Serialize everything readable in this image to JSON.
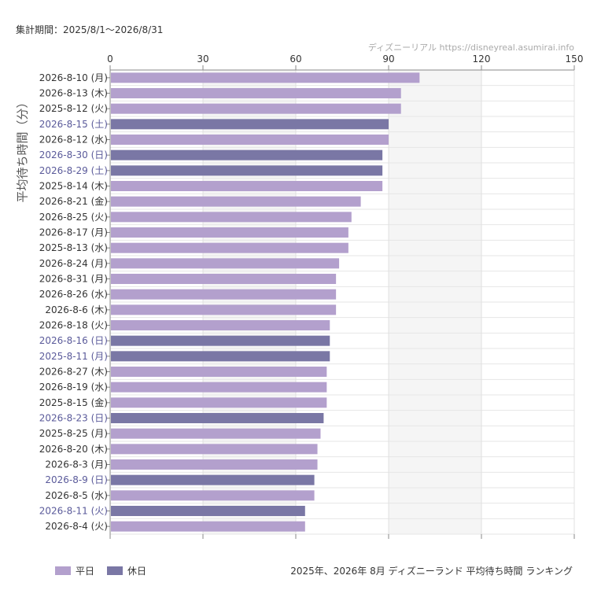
{
  "header": {
    "period_label": "集計期間：2025/8/1～2026/8/31",
    "credit": "ディズニーリアル https://disneyreal.asumirai.info"
  },
  "footer": {
    "title": "2025年、2026年 8月 ディズニーランド 平均待ち時間 ランキング"
  },
  "legend": [
    {
      "label": "平日",
      "color": "#b3a0cd"
    },
    {
      "label": "休日",
      "color": "#7a77a5"
    }
  ],
  "colors": {
    "weekday": "#b3a0cd",
    "holiday": "#7a77a5",
    "holiday_label": "#5a5a9a",
    "weekday_label": "#333333"
  },
  "chart_data": {
    "type": "bar",
    "orientation": "horizontal",
    "ylabel": "平均待ち時間（分）",
    "xlim": [
      0,
      150
    ],
    "xticks": [
      "0",
      "30",
      "60",
      "90",
      "120",
      "150"
    ],
    "categories": [
      "2026-8-10 (月)",
      "2026-8-13 (木)",
      "2025-8-12 (火)",
      "2026-8-15 (土)",
      "2026-8-12 (水)",
      "2026-8-30 (日)",
      "2026-8-29 (土)",
      "2025-8-14 (木)",
      "2026-8-21 (金)",
      "2026-8-25 (火)",
      "2026-8-17 (月)",
      "2025-8-13 (水)",
      "2026-8-24 (月)",
      "2026-8-31 (月)",
      "2026-8-26 (水)",
      "2026-8-6 (木)",
      "2026-8-18 (火)",
      "2026-8-16 (日)",
      "2025-8-11 (月)",
      "2026-8-27 (木)",
      "2026-8-19 (水)",
      "2025-8-15 (金)",
      "2026-8-23 (日)",
      "2025-8-25 (月)",
      "2026-8-20 (木)",
      "2026-8-3 (月)",
      "2026-8-9 (日)",
      "2026-8-5 (水)",
      "2026-8-11 (火)",
      "2026-8-4 (火)"
    ],
    "values": [
      100,
      94,
      94,
      90,
      90,
      88,
      88,
      88,
      81,
      78,
      77,
      77,
      74,
      73,
      73,
      73,
      71,
      71,
      71,
      70,
      70,
      70,
      69,
      68,
      67,
      67,
      66,
      66,
      63,
      63
    ],
    "holiday": [
      false,
      false,
      false,
      true,
      false,
      true,
      true,
      false,
      false,
      false,
      false,
      false,
      false,
      false,
      false,
      false,
      false,
      true,
      true,
      false,
      false,
      false,
      true,
      false,
      false,
      false,
      true,
      false,
      true,
      false
    ],
    "grid": true
  }
}
